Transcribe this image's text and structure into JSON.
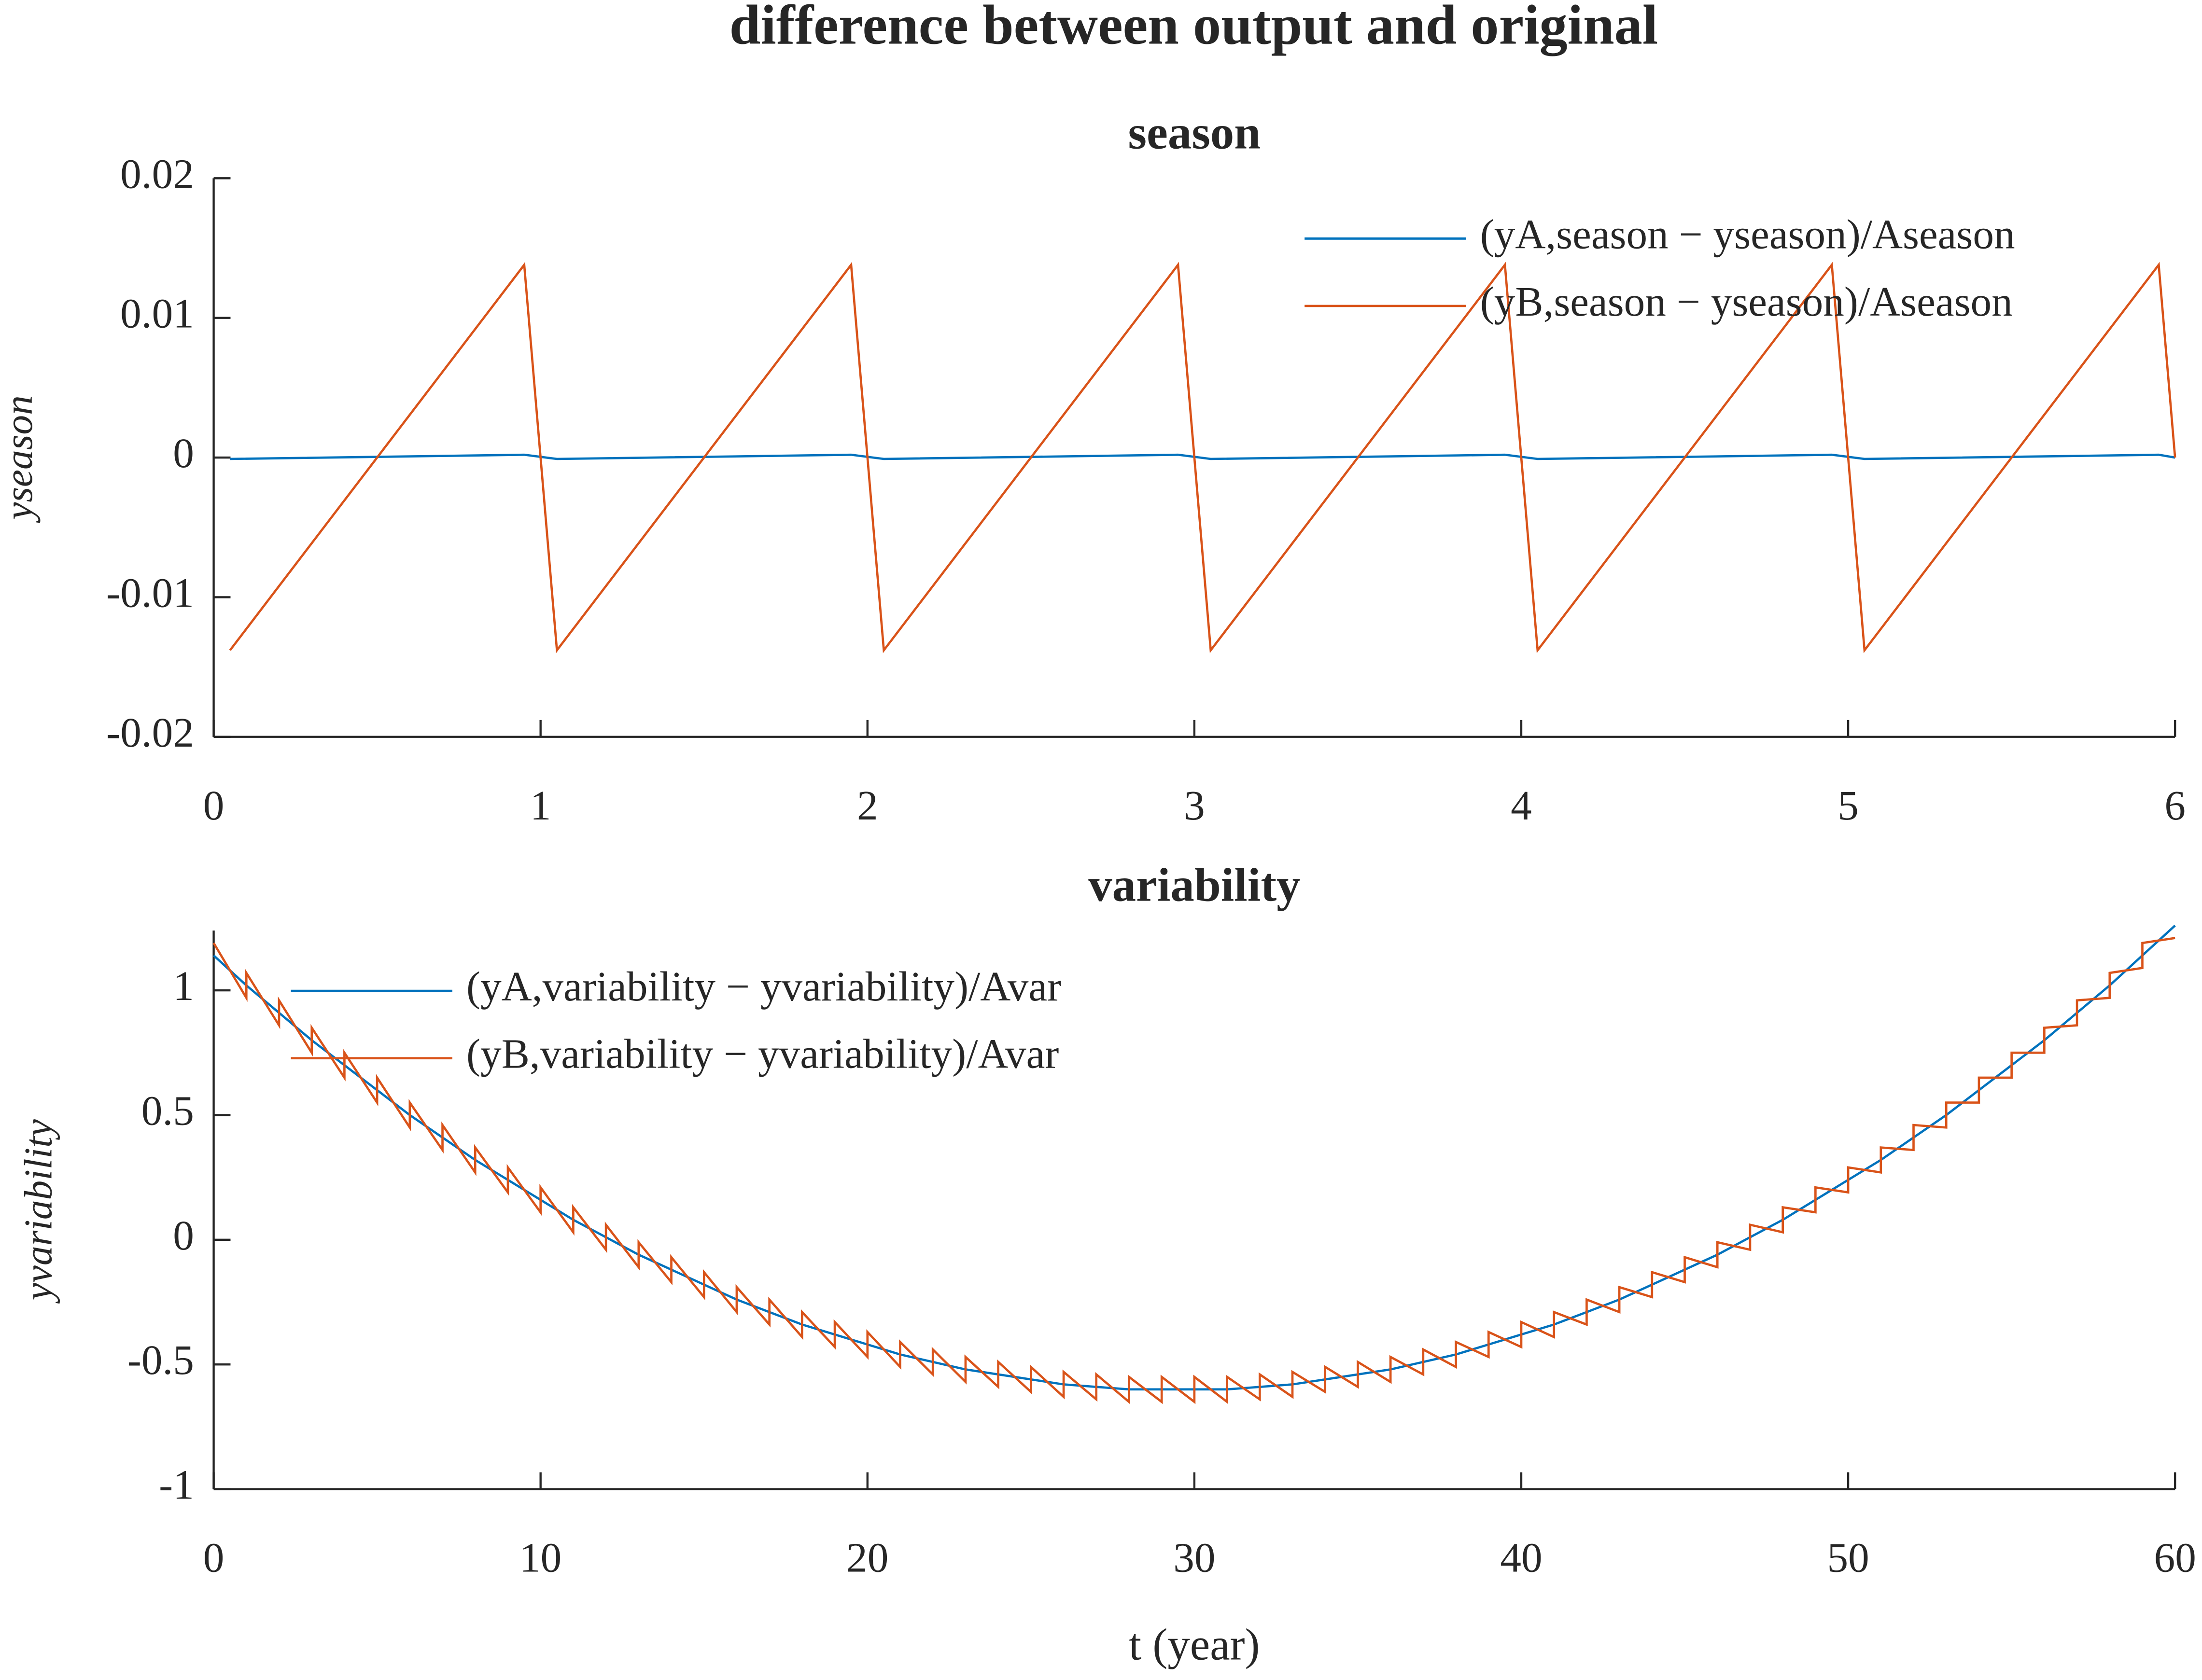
{
  "title": "difference between output and original",
  "chart_data": [
    {
      "type": "line",
      "title": "season",
      "ylabel": "yseason",
      "xlim": [
        0,
        6
      ],
      "xticks": [
        0,
        1,
        2,
        3,
        4,
        5,
        6
      ],
      "ylim": [
        -0.02,
        0.02
      ],
      "yticks": [
        -0.02,
        -0.01,
        0,
        0.01,
        0.02
      ],
      "grid": false,
      "legend": "upper right",
      "series": [
        {
          "name": "(yA,season − yseason)/Aseason",
          "color": "#0072BD",
          "x": [
            0.05,
            0.95,
            1.05,
            1.95,
            2.05,
            2.95,
            3.05,
            3.95,
            4.05,
            4.95,
            5.05,
            5.95,
            6.0
          ],
          "values": [
            -0.0001,
            0.0002,
            -0.0001,
            0.0002,
            -0.0001,
            0.0002,
            -0.0001,
            0.0002,
            -0.0001,
            0.0002,
            -0.0001,
            0.0002,
            0.0
          ]
        },
        {
          "name": "(yB,season − yseason)/Aseason",
          "color": "#D95319",
          "x": [
            0.05,
            0.95,
            1.05,
            1.95,
            2.05,
            2.95,
            3.05,
            3.95,
            4.05,
            4.95,
            5.05,
            5.95,
            6.0
          ],
          "values": [
            -0.0138,
            0.0138,
            -0.0138,
            0.0138,
            -0.0138,
            0.0138,
            -0.0138,
            0.0138,
            -0.0138,
            0.0138,
            -0.0138,
            0.0138,
            0.0
          ]
        }
      ]
    },
    {
      "type": "line",
      "title": "variability",
      "ylabel": "yvariability",
      "xlabel": "t (year)",
      "xlim": [
        0,
        60
      ],
      "xticks": [
        0,
        10,
        20,
        30,
        40,
        50,
        60
      ],
      "ylim": [
        -1,
        1.24
      ],
      "yticks": [
        -1,
        -0.5,
        0,
        0.5,
        1
      ],
      "grid": false,
      "legend": "upper left",
      "series": [
        {
          "name": "(yA,variability − yvariability)/Avar",
          "color": "#0072BD",
          "x": [
            0,
            1,
            2,
            3,
            4,
            5,
            6,
            7,
            8,
            9,
            10,
            11,
            12,
            13,
            14,
            15,
            16,
            17,
            18,
            19,
            20,
            21,
            22,
            23,
            24,
            25,
            26,
            27,
            28,
            29,
            30,
            31,
            32,
            33,
            34,
            35,
            36,
            37,
            38,
            39,
            40,
            41,
            42,
            43,
            44,
            45,
            46,
            47,
            48,
            49,
            50,
            51,
            52,
            53,
            54,
            55,
            56,
            57,
            58,
            59,
            60
          ],
          "values": [
            1.14,
            1.02,
            0.91,
            0.8,
            0.7,
            0.6,
            0.5,
            0.41,
            0.32,
            0.24,
            0.16,
            0.08,
            0.01,
            -0.06,
            -0.12,
            -0.18,
            -0.24,
            -0.29,
            -0.34,
            -0.38,
            -0.42,
            -0.46,
            -0.49,
            -0.52,
            -0.54,
            -0.56,
            -0.58,
            -0.59,
            -0.6,
            -0.6,
            -0.6,
            -0.6,
            -0.59,
            -0.58,
            -0.56,
            -0.54,
            -0.52,
            -0.49,
            -0.46,
            -0.42,
            -0.38,
            -0.34,
            -0.29,
            -0.24,
            -0.18,
            -0.12,
            -0.06,
            0.01,
            0.08,
            0.16,
            0.24,
            0.32,
            0.41,
            0.5,
            0.6,
            0.7,
            0.8,
            0.91,
            1.02,
            1.14,
            1.26
          ]
        },
        {
          "name": "(yB,variability − yvariability)/Avar",
          "color": "#D95319",
          "x": [
            0,
            1,
            1,
            2,
            2,
            3,
            3,
            4,
            4,
            5,
            5,
            6,
            6,
            7,
            7,
            8,
            8,
            9,
            9,
            10,
            10,
            11,
            11,
            12,
            12,
            13,
            13,
            14,
            14,
            15,
            15,
            16,
            16,
            17,
            17,
            18,
            18,
            19,
            19,
            20,
            20,
            21,
            21,
            22,
            22,
            23,
            23,
            24,
            24,
            25,
            25,
            26,
            26,
            27,
            27,
            28,
            28,
            29,
            29,
            30,
            30,
            31,
            31,
            32,
            32,
            33,
            33,
            34,
            34,
            35,
            35,
            36,
            36,
            37,
            37,
            38,
            38,
            39,
            39,
            40,
            40,
            41,
            41,
            42,
            42,
            43,
            43,
            44,
            44,
            45,
            45,
            46,
            46,
            47,
            47,
            48,
            48,
            49,
            49,
            50,
            50,
            51,
            51,
            52,
            52,
            53,
            53,
            54,
            54,
            55,
            55,
            56,
            56,
            57,
            57,
            58,
            58,
            59,
            59,
            60
          ],
          "values": [
            1.19,
            0.97,
            1.07,
            0.86,
            0.96,
            0.75,
            0.85,
            0.65,
            0.75,
            0.55,
            0.65,
            0.45,
            0.55,
            0.36,
            0.46,
            0.27,
            0.37,
            0.19,
            0.29,
            0.11,
            0.21,
            0.03,
            0.13,
            -0.04,
            0.06,
            -0.11,
            -0.01,
            -0.17,
            -0.07,
            -0.23,
            -0.13,
            -0.29,
            -0.19,
            -0.34,
            -0.24,
            -0.39,
            -0.29,
            -0.43,
            -0.33,
            -0.47,
            -0.37,
            -0.51,
            -0.41,
            -0.54,
            -0.44,
            -0.57,
            -0.47,
            -0.59,
            -0.49,
            -0.61,
            -0.51,
            -0.63,
            -0.53,
            -0.64,
            -0.54,
            -0.65,
            -0.55,
            -0.65,
            -0.55,
            -0.65,
            -0.55,
            -0.65,
            -0.55,
            -0.64,
            -0.54,
            -0.63,
            -0.53,
            -0.61,
            -0.51,
            -0.59,
            -0.49,
            -0.57,
            -0.47,
            -0.54,
            -0.44,
            -0.51,
            -0.41,
            -0.47,
            -0.37,
            -0.43,
            -0.33,
            -0.39,
            -0.29,
            -0.34,
            -0.24,
            -0.29,
            -0.19,
            -0.23,
            -0.13,
            -0.17,
            -0.07,
            -0.11,
            -0.01,
            -0.04,
            0.06,
            0.03,
            0.13,
            0.11,
            0.21,
            0.19,
            0.29,
            0.27,
            0.37,
            0.36,
            0.46,
            0.45,
            0.55,
            0.55,
            0.65,
            0.65,
            0.75,
            0.75,
            0.85,
            0.86,
            0.96,
            0.97,
            1.07,
            1.09,
            1.19,
            1.21
          ]
        }
      ]
    }
  ]
}
